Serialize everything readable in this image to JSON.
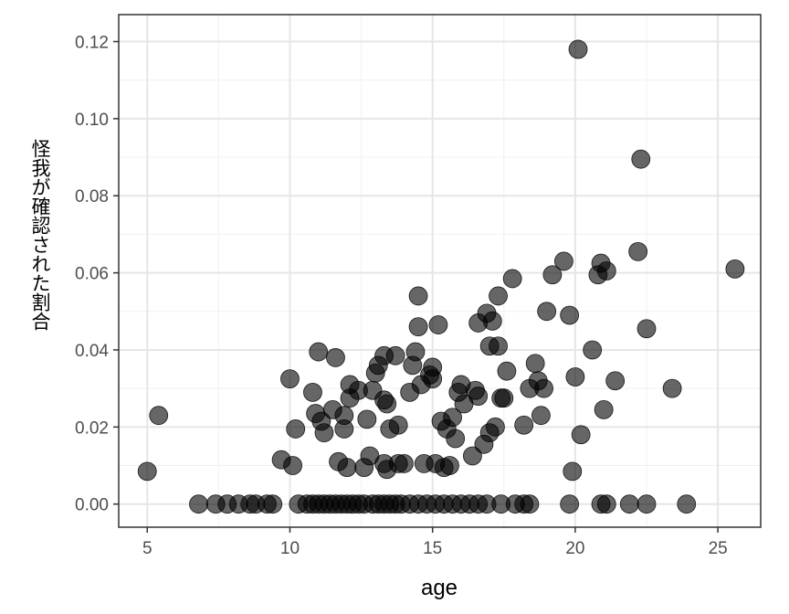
{
  "chart_data": {
    "type": "scatter",
    "xlabel": "age",
    "ylabel": "怪我が確認された割合",
    "xlim": [
      4,
      26.5
    ],
    "ylim": [
      -0.006,
      0.127
    ],
    "x_ticks": [
      5,
      10,
      15,
      20,
      25
    ],
    "x_tick_labels": [
      "5",
      "10",
      "15",
      "20",
      "25"
    ],
    "y_ticks": [
      0,
      0.02,
      0.04,
      0.06,
      0.08,
      0.1,
      0.12
    ],
    "y_tick_labels": [
      "0.00",
      "0.02",
      "0.04",
      "0.06",
      "0.08",
      "0.10",
      "0.12"
    ],
    "grid": true,
    "point_color": "#000000",
    "point_alpha": 0.6,
    "points": [
      [
        5.0,
        0.0085
      ],
      [
        5.4,
        0.023
      ],
      [
        6.8,
        0
      ],
      [
        7.4,
        0
      ],
      [
        7.8,
        0
      ],
      [
        8.2,
        0
      ],
      [
        8.6,
        0
      ],
      [
        8.8,
        0
      ],
      [
        9.2,
        0
      ],
      [
        9.4,
        0
      ],
      [
        9.7,
        0.0115
      ],
      [
        10.0,
        0.0325
      ],
      [
        10.1,
        0.01
      ],
      [
        10.2,
        0.0195
      ],
      [
        10.3,
        0
      ],
      [
        10.6,
        0
      ],
      [
        10.8,
        0
      ],
      [
        11.0,
        0
      ],
      [
        11.2,
        0
      ],
      [
        11.4,
        0
      ],
      [
        11.6,
        0
      ],
      [
        11.8,
        0
      ],
      [
        12.0,
        0
      ],
      [
        12.2,
        0
      ],
      [
        12.4,
        0
      ],
      [
        12.6,
        0
      ],
      [
        12.9,
        0
      ],
      [
        13.1,
        0
      ],
      [
        13.3,
        0
      ],
      [
        13.5,
        0
      ],
      [
        13.7,
        0
      ],
      [
        13.9,
        0
      ],
      [
        14.2,
        0
      ],
      [
        14.5,
        0
      ],
      [
        14.8,
        0
      ],
      [
        15.1,
        0
      ],
      [
        15.4,
        0
      ],
      [
        15.7,
        0
      ],
      [
        16.0,
        0
      ],
      [
        16.3,
        0
      ],
      [
        16.6,
        0
      ],
      [
        16.9,
        0
      ],
      [
        17.4,
        0
      ],
      [
        17.9,
        0
      ],
      [
        18.2,
        0
      ],
      [
        18.4,
        0
      ],
      [
        19.8,
        0
      ],
      [
        20.9,
        0
      ],
      [
        21.1,
        0
      ],
      [
        21.9,
        0
      ],
      [
        22.5,
        0
      ],
      [
        23.9,
        0
      ],
      [
        10.8,
        0.029
      ],
      [
        10.9,
        0.0235
      ],
      [
        11.0,
        0.0395
      ],
      [
        11.1,
        0.0215
      ],
      [
        11.2,
        0.0185
      ],
      [
        11.5,
        0.0245
      ],
      [
        11.6,
        0.038
      ],
      [
        11.7,
        0.011
      ],
      [
        11.9,
        0.023
      ],
      [
        11.9,
        0.0195
      ],
      [
        12.0,
        0.0095
      ],
      [
        12.1,
        0.0275
      ],
      [
        12.1,
        0.031
      ],
      [
        12.4,
        0.0295
      ],
      [
        12.6,
        0.0095
      ],
      [
        12.7,
        0.022
      ],
      [
        12.8,
        0.0125
      ],
      [
        12.9,
        0.0295
      ],
      [
        13.0,
        0.034
      ],
      [
        13.1,
        0.036
      ],
      [
        13.3,
        0.0385
      ],
      [
        13.3,
        0.027
      ],
      [
        13.3,
        0.0105
      ],
      [
        13.4,
        0.009
      ],
      [
        13.4,
        0.026
      ],
      [
        13.5,
        0.0195
      ],
      [
        13.7,
        0.0385
      ],
      [
        13.8,
        0.0105
      ],
      [
        13.8,
        0.0205
      ],
      [
        14.0,
        0.0105
      ],
      [
        14.2,
        0.029
      ],
      [
        14.3,
        0.036
      ],
      [
        14.4,
        0.0395
      ],
      [
        14.5,
        0.054
      ],
      [
        14.5,
        0.046
      ],
      [
        14.6,
        0.031
      ],
      [
        14.7,
        0.0105
      ],
      [
        14.9,
        0.0335
      ],
      [
        15.0,
        0.0355
      ],
      [
        15.0,
        0.0325
      ],
      [
        15.1,
        0.0105
      ],
      [
        15.2,
        0.0465
      ],
      [
        15.3,
        0.0215
      ],
      [
        15.4,
        0.0095
      ],
      [
        15.5,
        0.0195
      ],
      [
        15.6,
        0.01
      ],
      [
        15.7,
        0.0225
      ],
      [
        15.8,
        0.017
      ],
      [
        15.9,
        0.029
      ],
      [
        16.0,
        0.031
      ],
      [
        16.1,
        0.026
      ],
      [
        16.4,
        0.0125
      ],
      [
        16.5,
        0.0295
      ],
      [
        16.6,
        0.028
      ],
      [
        16.6,
        0.047
      ],
      [
        16.8,
        0.0155
      ],
      [
        16.9,
        0.0495
      ],
      [
        17.0,
        0.0185
      ],
      [
        17.0,
        0.041
      ],
      [
        17.1,
        0.0475
      ],
      [
        17.2,
        0.02
      ],
      [
        17.3,
        0.054
      ],
      [
        17.3,
        0.041
      ],
      [
        17.4,
        0.0275
      ],
      [
        17.5,
        0.0275
      ],
      [
        17.6,
        0.0345
      ],
      [
        17.8,
        0.0585
      ],
      [
        18.2,
        0.0205
      ],
      [
        18.4,
        0.03
      ],
      [
        18.6,
        0.0365
      ],
      [
        18.8,
        0.023
      ],
      [
        18.7,
        0.032
      ],
      [
        18.9,
        0.03
      ],
      [
        19.0,
        0.05
      ],
      [
        19.2,
        0.0595
      ],
      [
        19.6,
        0.063
      ],
      [
        19.8,
        0.049
      ],
      [
        19.9,
        0.0085
      ],
      [
        20.0,
        0.033
      ],
      [
        20.1,
        0.118
      ],
      [
        20.2,
        0.018
      ],
      [
        20.6,
        0.04
      ],
      [
        20.8,
        0.0595
      ],
      [
        20.9,
        0.0625
      ],
      [
        21.0,
        0.0245
      ],
      [
        21.1,
        0.0605
      ],
      [
        21.4,
        0.032
      ],
      [
        22.2,
        0.0655
      ],
      [
        22.3,
        0.0895
      ],
      [
        22.5,
        0.0455
      ],
      [
        23.4,
        0.03
      ],
      [
        25.6,
        0.061
      ]
    ]
  }
}
